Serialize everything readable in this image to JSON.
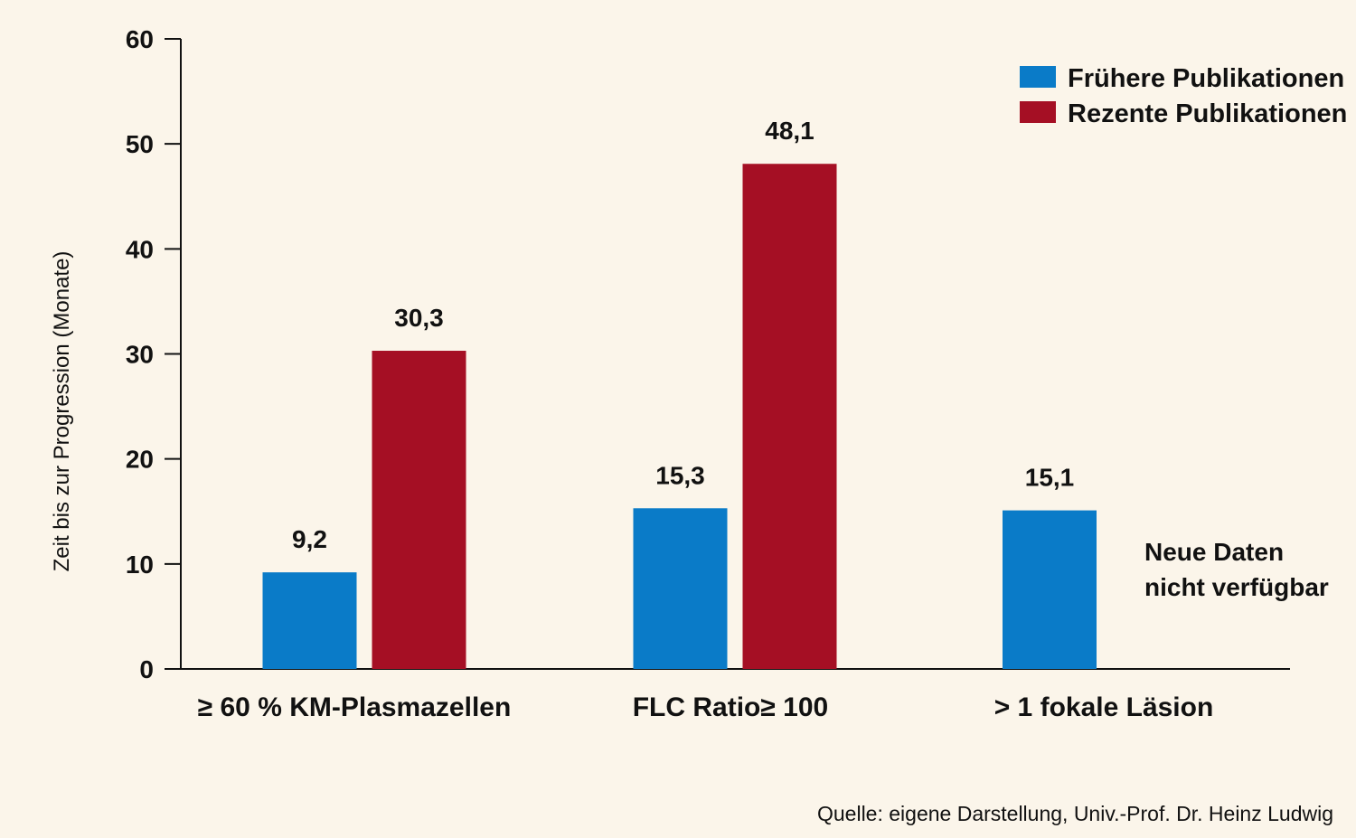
{
  "chart_data": {
    "type": "bar",
    "categories": [
      "≥ 60 % KM-Plasmazellen",
      "FLC Ratio≥ 100",
      "> 1 fokale Läsion"
    ],
    "series": [
      {
        "name": "Frühere Publikationen",
        "color": "#0a7bc8",
        "values": [
          9.2,
          15.3,
          15.1
        ],
        "labels": [
          "9,2",
          "15,3",
          "15,1"
        ]
      },
      {
        "name": "Rezente Publikationen",
        "color": "#a50f24",
        "values": [
          30.3,
          48.1,
          null
        ],
        "labels": [
          "30,3",
          "48,1",
          ""
        ]
      }
    ],
    "ylabel": "Zeit bis zur Progression (Monate)",
    "ylim": [
      0,
      60
    ],
    "yticks": [
      0,
      10,
      20,
      30,
      40,
      50,
      60
    ],
    "legend_position": "top-right",
    "grid": false,
    "note_lines": [
      "Neue Daten",
      "nicht verfügbar"
    ],
    "source": "Quelle: eigene Darstellung, Univ.-Prof. Dr. Heinz Ludwig"
  }
}
